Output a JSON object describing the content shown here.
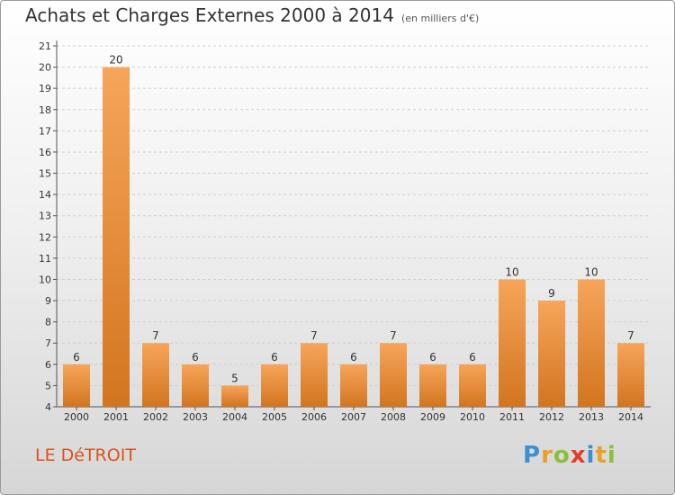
{
  "title": "Achats et Charges Externes 2000 à 2014",
  "subtitle": "(en milliers d'€)",
  "commune": "LE DéTROIT",
  "logo": {
    "letters": [
      {
        "ch": "P",
        "color": "#3d8fd0"
      },
      {
        "ch": "r",
        "color": "#e8a02a"
      },
      {
        "ch": "o",
        "color": "#8bbf3c"
      },
      {
        "ch": "x",
        "color": "#e23d27"
      },
      {
        "ch": "i",
        "color": "#3d8fd0"
      },
      {
        "ch": "t",
        "color": "#e8a02a"
      },
      {
        "ch": "i",
        "color": "#8bbf3c"
      }
    ]
  },
  "colors": {
    "bar_light": "#f7a55a",
    "bar_dark": "#d2751f",
    "grid": "#cfcfcf",
    "axis": "#555555",
    "commune": "#d9531e"
  },
  "chart_data": {
    "type": "bar",
    "categories": [
      "2000",
      "2001",
      "2002",
      "2003",
      "2004",
      "2005",
      "2006",
      "2007",
      "2008",
      "2009",
      "2010",
      "2011",
      "2012",
      "2013",
      "2014"
    ],
    "values": [
      6,
      20,
      7,
      6,
      5,
      6,
      7,
      6,
      7,
      6,
      6,
      10,
      9,
      10,
      7
    ],
    "data_labels": [
      "6",
      "20",
      "7",
      "6",
      "5",
      "6",
      "7",
      "6",
      "7",
      "6",
      "6",
      "10",
      "9",
      "10",
      "7"
    ],
    "yticks": [
      "4",
      "5",
      "6",
      "7",
      "8",
      "9",
      "10",
      "11",
      "12",
      "13",
      "14",
      "15",
      "16",
      "17",
      "18",
      "19",
      "20",
      "21"
    ],
    "ylim": [
      4,
      21
    ],
    "grid": true,
    "xlabel": "",
    "ylabel": ""
  }
}
